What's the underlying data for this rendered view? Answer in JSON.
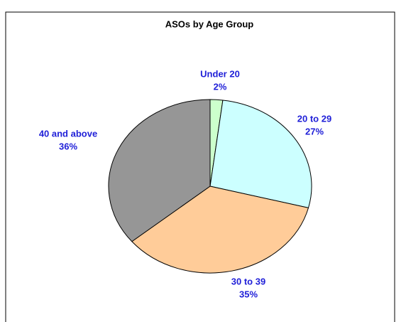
{
  "chart_data": {
    "type": "pie",
    "title": "ASOs by Age Group",
    "categories": [
      "Under 20",
      "20 to 29",
      "30 to 39",
      "40 and above"
    ],
    "values": [
      2,
      27,
      35,
      36
    ],
    "value_labels": [
      "2%",
      "27%",
      "35%",
      "36%"
    ],
    "colors": [
      "#ccffcc",
      "#ccffff",
      "#ffcc99",
      "#969696"
    ]
  }
}
